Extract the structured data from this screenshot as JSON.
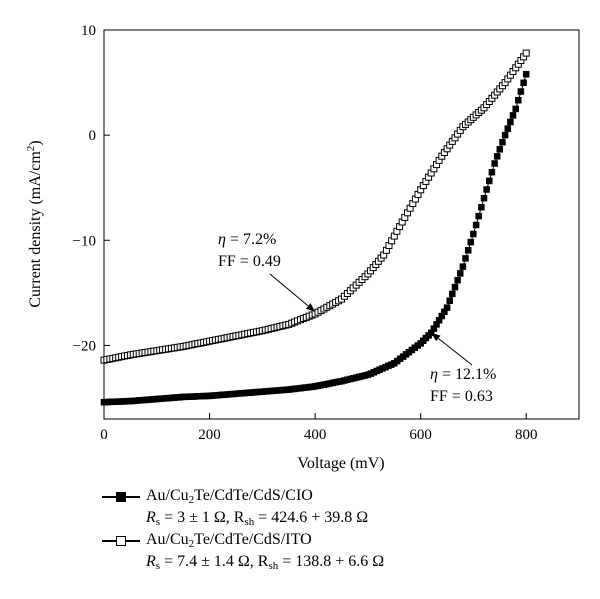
{
  "chart_data": {
    "type": "scatter",
    "xlabel": "Voltage (mV)",
    "ylabel": "Current density (mA/cm",
    "ylabel_sup": "2",
    "ylabel_close": ")",
    "xlim": [
      0,
      900
    ],
    "ylim": [
      -27,
      10
    ],
    "xticks": [
      0,
      200,
      400,
      600,
      800
    ],
    "yticks": [
      -20,
      -10,
      0,
      10
    ],
    "grid": false,
    "legend_position": "bottom",
    "series": [
      {
        "key": "cio",
        "marker": "filled-square",
        "color": "#000000",
        "legend_parts": [
          "Au/Cu",
          "2",
          "Te/CdTe/CdS/CIO"
        ],
        "params_text": "R",
        "params_sub1": "s",
        "params_mid": " = 3 ± 1 Ω, R",
        "params_sub2": "sh",
        "params_end": " = 424.6 + 39.8 Ω",
        "points": [
          [
            0,
            -25.4
          ],
          [
            50,
            -25.3
          ],
          [
            100,
            -25.1
          ],
          [
            150,
            -24.9
          ],
          [
            200,
            -24.8
          ],
          [
            250,
            -24.6
          ],
          [
            300,
            -24.4
          ],
          [
            350,
            -24.2
          ],
          [
            400,
            -23.9
          ],
          [
            450,
            -23.4
          ],
          [
            500,
            -22.8
          ],
          [
            550,
            -21.7
          ],
          [
            600,
            -19.8
          ],
          [
            620,
            -18.8
          ],
          [
            650,
            -16.4
          ],
          [
            680,
            -12.5
          ],
          [
            700,
            -9.4
          ],
          [
            720,
            -6.0
          ],
          [
            740,
            -2.7
          ],
          [
            760,
            0.0
          ],
          [
            780,
            2.5
          ],
          [
            800,
            5.8
          ]
        ]
      },
      {
        "key": "ito",
        "marker": "open-square",
        "color": "#000000",
        "legend_parts": [
          "Au/Cu",
          "2",
          "Te/CdTe/CdS/ITO"
        ],
        "params_text": "R",
        "params_sub1": "s",
        "params_mid": " = 7.4 ± 1.4 Ω, R",
        "params_sub2": "sh",
        "params_end": " = 138.8 + 6.6 Ω",
        "points": [
          [
            0,
            -21.4
          ],
          [
            50,
            -20.9
          ],
          [
            100,
            -20.5
          ],
          [
            150,
            -20.1
          ],
          [
            200,
            -19.6
          ],
          [
            250,
            -19.1
          ],
          [
            300,
            -18.6
          ],
          [
            350,
            -18.0
          ],
          [
            400,
            -17.0
          ],
          [
            450,
            -15.6
          ],
          [
            500,
            -13.2
          ],
          [
            530,
            -11.4
          ],
          [
            560,
            -8.7
          ],
          [
            600,
            -5.2
          ],
          [
            640,
            -2.0
          ],
          [
            680,
            0.8
          ],
          [
            720,
            2.6
          ],
          [
            760,
            5.0
          ],
          [
            800,
            7.8
          ]
        ]
      }
    ],
    "annotations": [
      {
        "key": "ito",
        "line1_sym": "η",
        "line1_val": " = 7.2%",
        "line2": "FF = 0.49",
        "target": [
          400,
          -16.8
        ]
      },
      {
        "key": "cio",
        "line1_sym": "η",
        "line1_val": " = 12.1%",
        "line2": "FF = 0.63",
        "target": [
          620,
          -18.8
        ]
      }
    ]
  }
}
